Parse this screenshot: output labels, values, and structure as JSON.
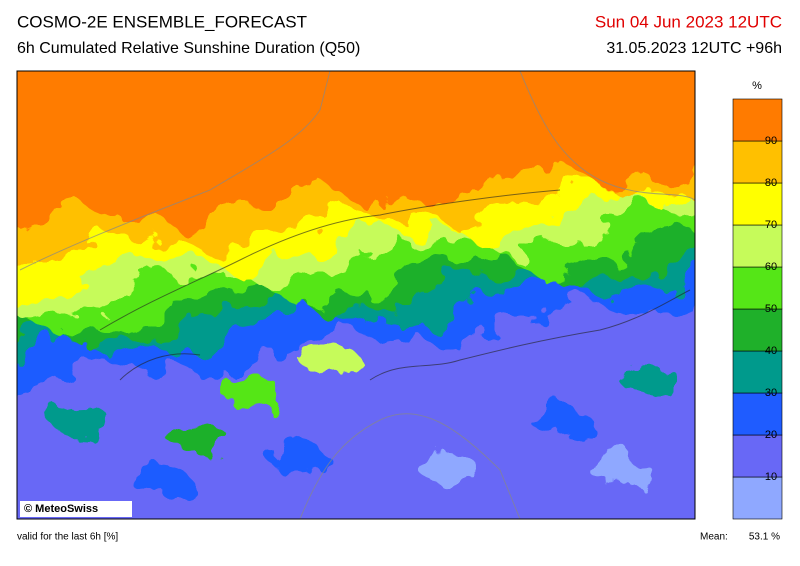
{
  "header": {
    "title": "COSMO-2E ENSEMBLE_FORECAST",
    "subtitle": "6h Cumulated Relative Sunshine Duration (Q50)",
    "valid_time": "Sun 04 Jun 2023 12UTC",
    "run_info": "31.05.2023 12UTC +96h"
  },
  "colorbar": {
    "unit": "%",
    "ticks": [
      10,
      20,
      30,
      40,
      50,
      60,
      70,
      80,
      90
    ],
    "colors": [
      "#8fa8ff",
      "#6868f6",
      "#1f5cff",
      "#009a8c",
      "#1fb02a",
      "#55e617",
      "#c6fb5a",
      "#ffff00",
      "#ffc000",
      "#ff7b00"
    ]
  },
  "map": {
    "credit": "© MeteoSwiss"
  },
  "footer": {
    "note": "valid for the last 6h [%]",
    "mean_label": "Mean:",
    "mean_value": "53.1 %"
  }
}
